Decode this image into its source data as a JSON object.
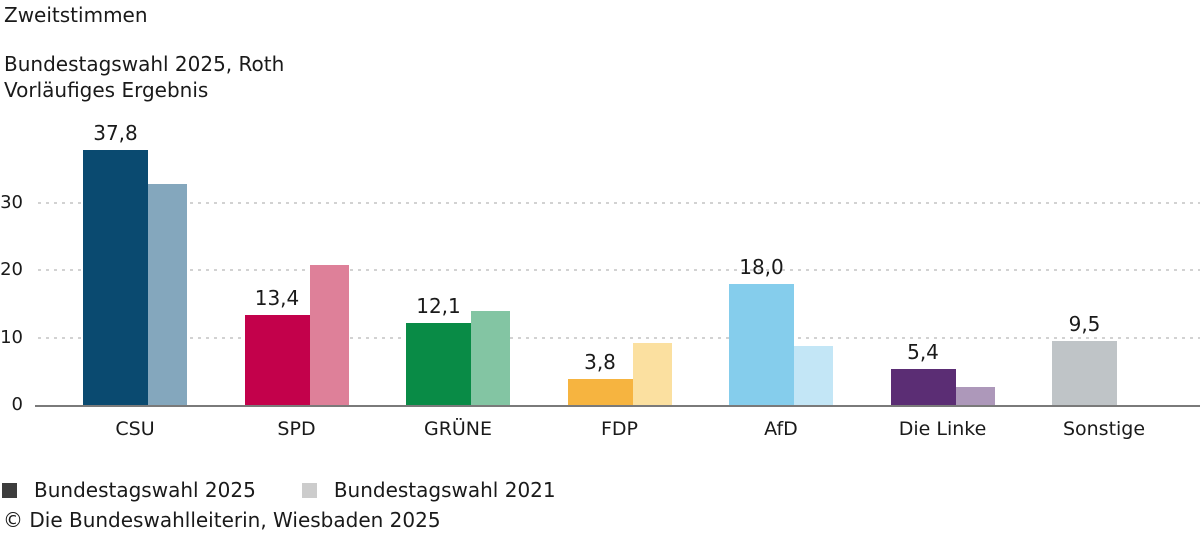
{
  "title": "Zweitstimmen",
  "subtitle_line1": "Bundestagswahl 2025, Roth",
  "subtitle_line2": "Vorläufiges Ergebnis",
  "footer": "© Die Bundeswahlleiterin, Wiesbaden 2025",
  "colors": {
    "text": "#1a1a1a",
    "axis_line": "#7a7a7a",
    "gridline": "#d2d2d2",
    "legend_2025_swatch": "#3d3d3d",
    "legend_2021_swatch": "#cccccc"
  },
  "legend": {
    "items": [
      {
        "label": "Bundestagswahl 2025",
        "color": "#3d3d3d"
      },
      {
        "label": "Bundestagswahl 2021",
        "color": "#cccccc"
      }
    ]
  },
  "chart_data": {
    "type": "bar",
    "title": "Zweitstimmen",
    "subtitle": "Bundestagswahl 2025, Roth – Vorläufiges Ergebnis",
    "categories": [
      "CSU",
      "SPD",
      "GRÜNE",
      "FDP",
      "AfD",
      "Die Linke",
      "Sonstige"
    ],
    "series": [
      {
        "name": "Bundestagswahl 2025",
        "values": [
          37.8,
          13.4,
          12.1,
          3.8,
          18.0,
          5.4,
          9.5
        ],
        "labels": [
          "37,8",
          "13,4",
          "12,1",
          "3,8",
          "18,0",
          "5,4",
          "9,5"
        ],
        "colors": [
          "#0a4a70",
          "#c3014b",
          "#098b46",
          "#f6b440",
          "#85cdec",
          "#5b2d74",
          "#bfc4c7"
        ]
      },
      {
        "name": "Bundestagswahl 2021",
        "values": [
          32.7,
          20.8,
          13.9,
          9.2,
          8.7,
          2.7,
          null
        ],
        "labels": [
          "",
          "",
          "",
          "",
          "",
          "",
          ""
        ],
        "colors": [
          "#84a7bd",
          "#de8099",
          "#83c5a3",
          "#fbe0a0",
          "#c3e6f6",
          "#ad98ba",
          null
        ]
      }
    ],
    "xlabel": "",
    "ylabel": "",
    "yticks": [
      0,
      10,
      20,
      30
    ],
    "ylim": [
      0,
      40
    ],
    "grid": "horizontal dashed lines at 10, 20, 30",
    "value_labels": "2025 series only, above bars, comma decimal separator",
    "legend_position": "bottom-left"
  }
}
